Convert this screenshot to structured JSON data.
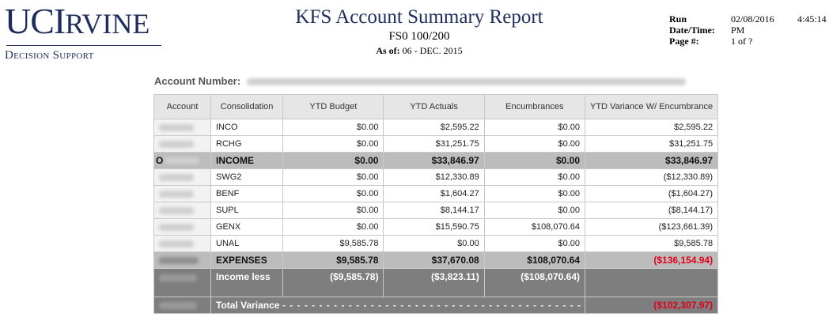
{
  "logo": {
    "uc": "UCI",
    "rvine": "RVINE",
    "sub": "Decision Support"
  },
  "header": {
    "title": "KFS Account Summary Report",
    "subtitle": "FS0 100/200",
    "asof_label": "As of:",
    "asof_value": "06 - DEC. 2015"
  },
  "run_info": {
    "run_label": "Run",
    "datetime_label": "Date/Time:",
    "page_label": "Page #:",
    "date": "02/08/2016",
    "time": "4:45:14",
    "ampm": "PM",
    "page": "1 of ?"
  },
  "account_number_label": "Account Number:",
  "table": {
    "columns": [
      "Account",
      "Consolidation",
      "YTD Budget",
      "YTD Actuals",
      "Encumbrances",
      "YTD Variance W/ Encumbrance"
    ],
    "income_rows": [
      {
        "consolidation": "INCO",
        "budget": "$0.00",
        "actuals": "$2,595.22",
        "encumbrances": "$0.00",
        "variance": "$2,595.22"
      },
      {
        "consolidation": "RCHG",
        "budget": "$0.00",
        "actuals": "$31,251.75",
        "encumbrances": "$0.00",
        "variance": "$31,251.75"
      }
    ],
    "income_total": {
      "prefix": "O",
      "label": "INCOME",
      "budget": "$0.00",
      "actuals": "$33,846.97",
      "encumbrances": "$0.00",
      "variance": "$33,846.97"
    },
    "expense_rows": [
      {
        "consolidation": "SWG2",
        "budget": "$0.00",
        "actuals": "$12,330.89",
        "encumbrances": "$0.00",
        "variance": "($12,330.89)"
      },
      {
        "consolidation": "BENF",
        "budget": "$0.00",
        "actuals": "$1,604.27",
        "encumbrances": "$0.00",
        "variance": "($1,604.27)"
      },
      {
        "consolidation": "SUPL",
        "budget": "$0.00",
        "actuals": "$8,144.17",
        "encumbrances": "$0.00",
        "variance": "($8,144.17)"
      },
      {
        "consolidation": "GENX",
        "budget": "$0.00",
        "actuals": "$15,590.75",
        "encumbrances": "$108,070.64",
        "variance": "($123,661.39)"
      },
      {
        "consolidation": "UNAL",
        "budget": "$9,585.78",
        "actuals": "$0.00",
        "encumbrances": "$0.00",
        "variance": "$9,585.78"
      }
    ],
    "expense_total": {
      "label": "EXPENSES",
      "budget": "$9,585.78",
      "actuals": "$37,670.08",
      "encumbrances": "$108,070.64",
      "variance": "($136,154.94)"
    },
    "net_row": {
      "label": "Income less",
      "budget": "($9,585.78)",
      "actuals": "($3,823.11)",
      "encumbrances": "($108,070.64)",
      "variance": ""
    },
    "total_variance": {
      "label": "Total Variance",
      "dashes": "- - - - - - - - - - - - - - - - - - - - - - - - - - - - - - - - - - - - - - - - - - - - - - - - - - - - - - - - - - - - - - - - - - - - - - - >",
      "value": "($102,307.97)"
    }
  },
  "colors": {
    "brand": "#1f2d5c",
    "negative": "#e0001a",
    "total_row": "#bcbcbc",
    "net_row": "#7e7e7e"
  }
}
